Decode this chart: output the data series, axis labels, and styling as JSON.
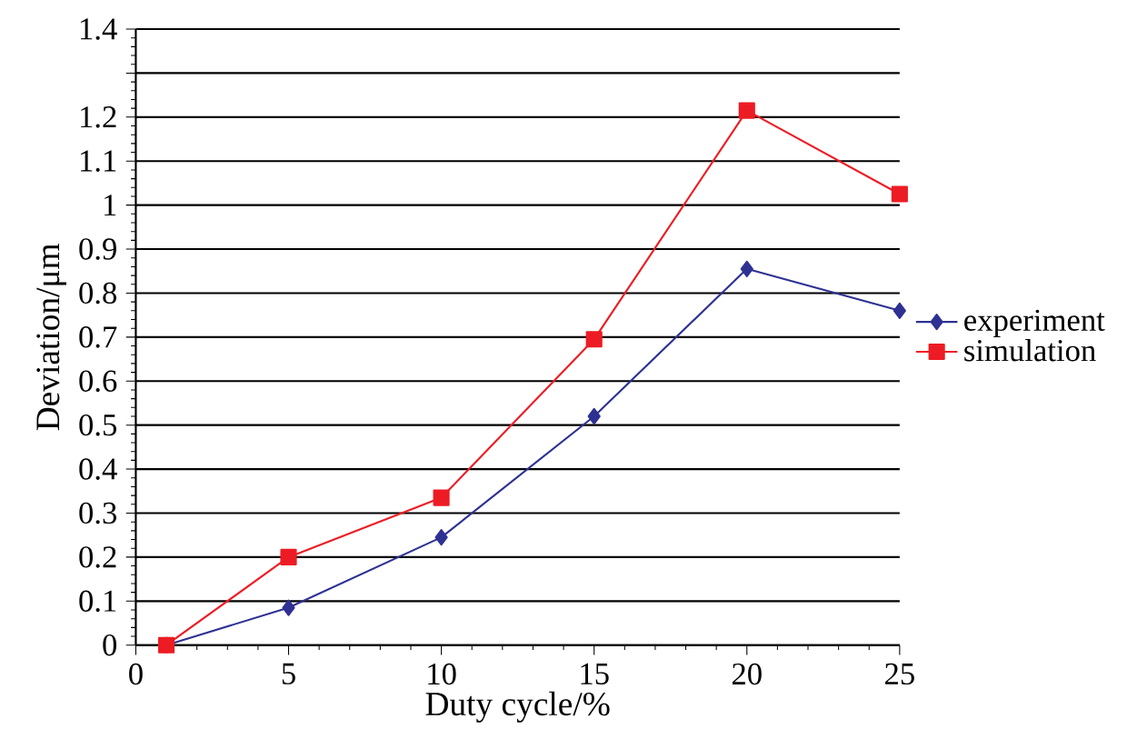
{
  "chart_data": {
    "type": "line",
    "xlabel": "Duty cycle/%",
    "ylabel": "Deviation/μm",
    "x": [
      1,
      5,
      10,
      15,
      20,
      25
    ],
    "series": [
      {
        "name": "experiment",
        "color": "#2e3192",
        "marker": "diamond",
        "values": [
          0,
          0.085,
          0.245,
          0.52,
          0.855,
          0.76
        ]
      },
      {
        "name": "simulation",
        "color": "#ed1c24",
        "marker": "square",
        "values": [
          0,
          0.2,
          0.335,
          0.695,
          1.215,
          1.025
        ]
      }
    ],
    "xlim": [
      0,
      25
    ],
    "xticks": [
      0,
      5,
      10,
      15,
      20,
      25
    ],
    "ylim": [
      0,
      1.4
    ],
    "yticks": [
      0,
      0.1,
      0.2,
      0.3,
      0.4,
      0.5,
      0.6,
      0.7,
      0.8,
      0.9,
      1,
      1.1,
      1.2,
      {
        "value": 1.3,
        "label": null
      },
      1.4
    ],
    "grid": "y",
    "legend": "right"
  }
}
